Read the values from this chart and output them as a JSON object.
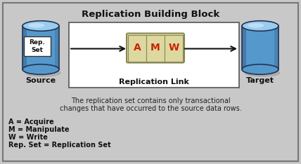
{
  "title": "Replication Building Block",
  "bg_color": "#c8c8c8",
  "outer_border_color": "#777777",
  "amw_box_bg": "#ddd8a0",
  "amw_box_border": "#888855",
  "amw_letters": [
    "A",
    "M",
    "W"
  ],
  "amw_letter_color": "#cc2200",
  "source_label": "Source",
  "target_label": "Target",
  "rep_set_label": "Rep.\nSet",
  "replication_link_label": "Replication Link",
  "caption_line1": "The replication set contains only transactional",
  "caption_line2": "changes that have occurred to the source data rows.",
  "legend_lines": [
    "A = Acquire",
    "M = Manipulate",
    "W = Write",
    "Rep. Set = Replication Set"
  ],
  "cyl_body_color": "#5599cc",
  "cyl_top_color": "#99ccee",
  "cyl_dark": "#223355",
  "cyl_highlight": "#ddeeff",
  "arrow_color": "#111111",
  "font_size_title": 9.5,
  "font_size_labels": 8,
  "font_size_repset": 6.5,
  "font_size_amw": 10,
  "font_size_caption": 7,
  "font_size_legend": 7
}
